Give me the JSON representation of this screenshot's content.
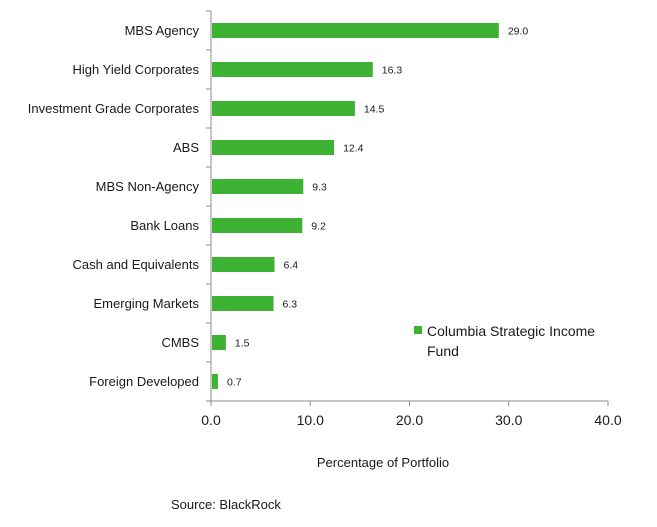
{
  "chart_data": {
    "type": "bar",
    "orientation": "horizontal",
    "categories": [
      "MBS Agency",
      "High Yield Corporates",
      "Investment Grade Corporates",
      "ABS",
      "MBS Non-Agency",
      "Bank Loans",
      "Cash and Equivalents",
      "Emerging Markets",
      "CMBS",
      "Foreign Developed"
    ],
    "series": [
      {
        "name": "Columbia Strategic Income Fund",
        "values": [
          29.0,
          16.3,
          14.5,
          12.4,
          9.3,
          9.2,
          6.4,
          6.3,
          1.5,
          0.7
        ],
        "value_labels": [
          "29.0",
          "16.3",
          "14.5",
          "12.4",
          "9.3",
          "9.2",
          "6.4",
          "6.3",
          "1.5",
          "0.7"
        ],
        "color": "#3db233"
      }
    ],
    "title": "",
    "xlabel": "Percentage of Portfolio",
    "ylabel": "",
    "xlim": [
      0,
      40
    ],
    "xticks": [
      0,
      10,
      20,
      30,
      40
    ],
    "xtick_labels": [
      "0.0",
      "10.0",
      "20.0",
      "30.0",
      "40.0"
    ],
    "grid": false,
    "legend": {
      "placement": "right",
      "entries": [
        "Columbia Strategic Income Fund"
      ],
      "lines": [
        "Columbia Strategic Income",
        "Fund"
      ]
    },
    "source": "Source: BlackRock"
  }
}
